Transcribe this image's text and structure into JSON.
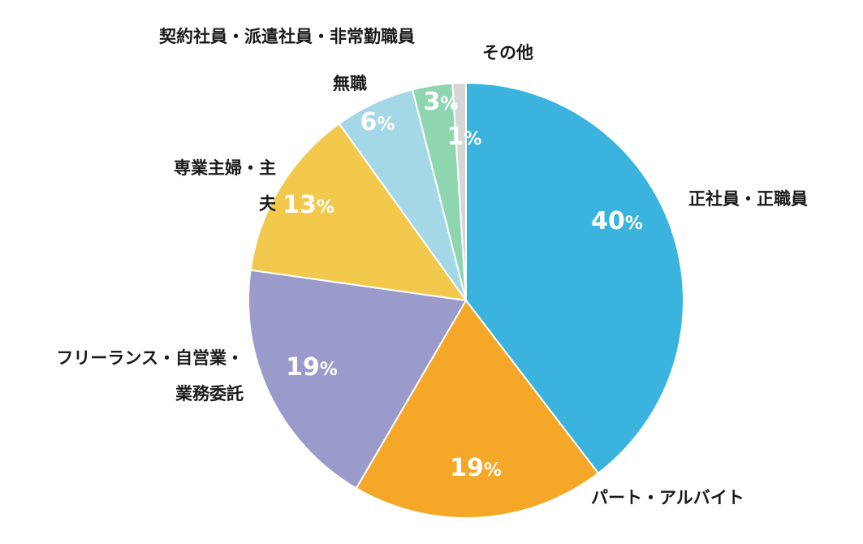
{
  "chart_data": {
    "type": "pie",
    "start": "12 o'clock",
    "direction": "clockwise",
    "slices": [
      {
        "label_lines": [
          "正社員・正職員"
        ],
        "value": 40,
        "percent_text": "40",
        "color": "#3AB4DE"
      },
      {
        "label_lines": [
          "パート・アルバイト"
        ],
        "value": 19,
        "percent_text": "19",
        "color": "#F5A727"
      },
      {
        "label_lines": [
          "フリーランス・自営業・",
          "業務委託"
        ],
        "value": 19,
        "percent_text": "19",
        "color": "#9B9BCB"
      },
      {
        "label_lines": [
          "専業主婦・主",
          "夫"
        ],
        "value": 13,
        "percent_text": "13",
        "color": "#F2C94C"
      },
      {
        "label_lines": [
          "無職"
        ],
        "value": 6,
        "percent_text": "6",
        "color": "#A4D8E6"
      },
      {
        "label_lines": [
          "契約社員・派遣社員・非常勤職員"
        ],
        "value": 3,
        "percent_text": "3",
        "color": "#8ED6B0"
      },
      {
        "label_lines": [
          "その他"
        ],
        "value": 1,
        "percent_text": "1",
        "color": "#D6D6D6"
      }
    ],
    "percent_suffix": "%"
  }
}
